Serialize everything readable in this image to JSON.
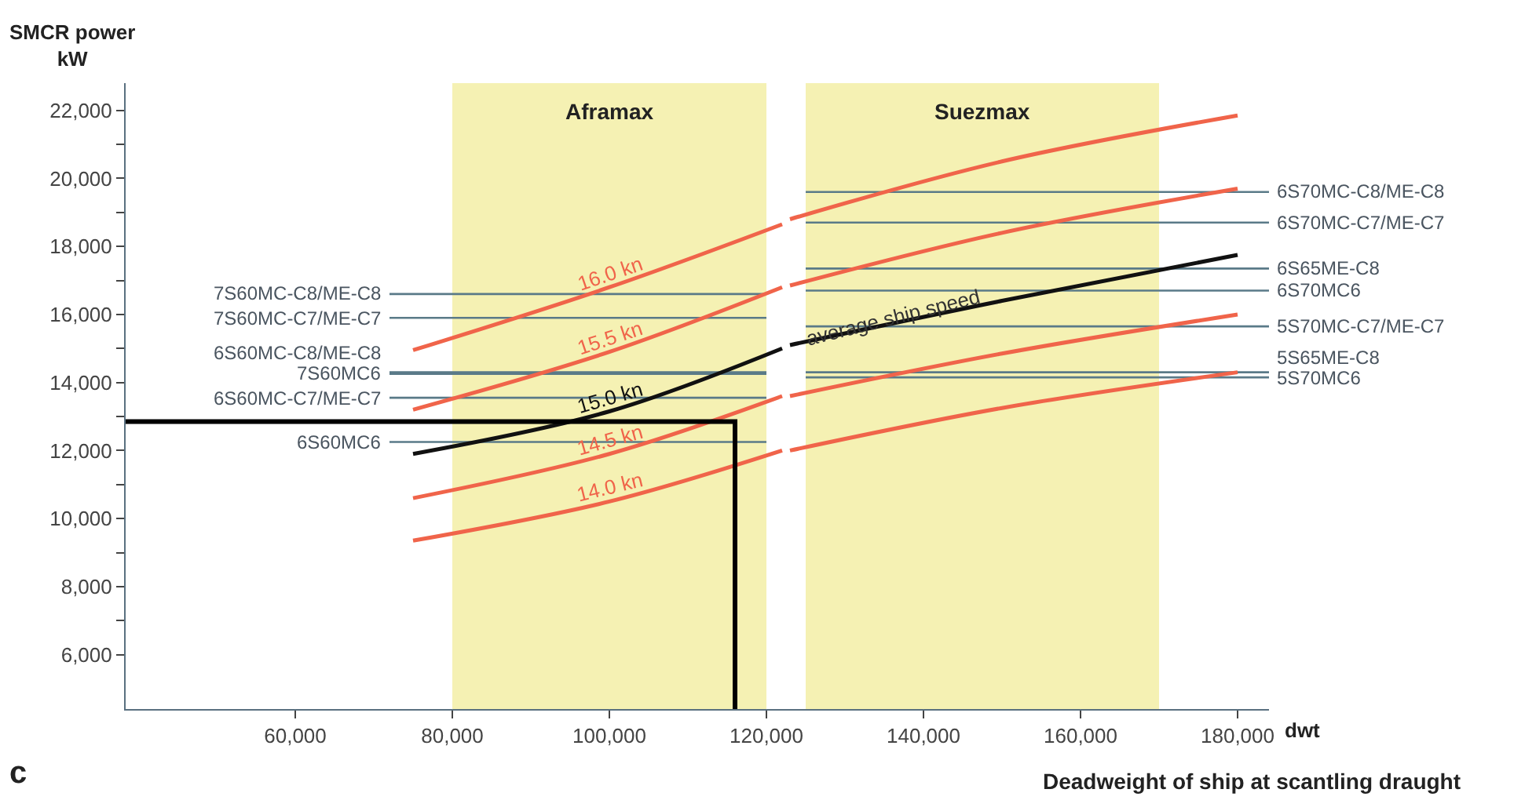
{
  "chart_data": {
    "type": "line",
    "xlabel": "Deadweight of ship at scantling draught",
    "ylabel": "SMCR power\nkW",
    "xlim": [
      38400,
      184000
    ],
    "ylim": [
      4400,
      22800
    ],
    "xticks": [
      {
        "value": 60000,
        "label": "60,000"
      },
      {
        "value": 80000,
        "label": "80,000"
      },
      {
        "value": 100000,
        "label": "100,000"
      },
      {
        "value": 120000,
        "label": "120,000"
      },
      {
        "value": 140000,
        "label": "140,000"
      },
      {
        "value": 160000,
        "label": "160,000"
      },
      {
        "value": 180000,
        "label": "180,000"
      }
    ],
    "yticks": [
      {
        "value": 6000,
        "label": "6,000"
      },
      {
        "value": 7000,
        "label": null
      },
      {
        "value": 8000,
        "label": "8,000"
      },
      {
        "value": 9000,
        "label": null
      },
      {
        "value": 10000,
        "label": "10,000"
      },
      {
        "value": 11000,
        "label": null
      },
      {
        "value": 12000,
        "label": "12,000"
      },
      {
        "value": 13000,
        "label": null
      },
      {
        "value": 14000,
        "label": "14,000"
      },
      {
        "value": 15000,
        "label": null
      },
      {
        "value": 16000,
        "label": "16,000"
      },
      {
        "value": 17000,
        "label": null
      },
      {
        "value": 18000,
        "label": "18,000"
      },
      {
        "value": 19000,
        "label": null
      },
      {
        "value": 20000,
        "label": "20,000"
      },
      {
        "value": 21000,
        "label": null
      },
      {
        "value": 22000,
        "label": "22,000"
      }
    ],
    "grid": false,
    "legend": false,
    "marker": "none",
    "line_style": "solid",
    "bands": [
      {
        "axis": "x",
        "from": 80000,
        "to": 120000,
        "label": "Aframax",
        "color": "#f2eea0"
      },
      {
        "axis": "x",
        "from": 125000,
        "to": 170000,
        "label": "Suezmax",
        "color": "#f2eea0"
      }
    ],
    "series": [
      {
        "name": "7S60MC-C8/ME-C8",
        "color": "#5a7a88",
        "x": [
          72000,
          120000
        ],
        "values": [
          16600,
          16600
        ]
      },
      {
        "name": "7S60MC-C7/ME-C7",
        "color": "#5a7a88",
        "x": [
          72000,
          120000
        ],
        "values": [
          15900,
          15900
        ]
      },
      {
        "name": "6S60MC-C8/ME-C8",
        "color": "#5a7a88",
        "x": [
          72000,
          120000
        ],
        "values": [
          14300,
          14300
        ]
      },
      {
        "name": "7S60MC6",
        "color": "#5a7a88",
        "x": [
          72000,
          120000
        ],
        "values": [
          14250,
          14250
        ]
      },
      {
        "name": "6S60MC-C7/ME-C7",
        "color": "#5a7a88",
        "x": [
          72000,
          120000
        ],
        "values": [
          13550,
          13550
        ]
      },
      {
        "name": "6S60MC6",
        "color": "#5a7a88",
        "x": [
          72000,
          120000
        ],
        "values": [
          12250,
          12250
        ]
      },
      {
        "name": "6S70MC-C8/ME-C8",
        "color": "#5a7a88",
        "x": [
          125000,
          184000
        ],
        "values": [
          19600,
          19600
        ]
      },
      {
        "name": "6S70MC-C7/ME-C7",
        "color": "#5a7a88",
        "x": [
          125000,
          184000
        ],
        "values": [
          18700,
          18700
        ]
      },
      {
        "name": "6S65ME-C8",
        "color": "#5a7a88",
        "x": [
          125000,
          184000
        ],
        "values": [
          17350,
          17350
        ]
      },
      {
        "name": "6S70MC6",
        "color": "#5a7a88",
        "x": [
          125000,
          184000
        ],
        "values": [
          16700,
          16700
        ]
      },
      {
        "name": "5S70MC-C7/ME-C7",
        "color": "#5a7a88",
        "x": [
          125000,
          184000
        ],
        "values": [
          15650,
          15650
        ]
      },
      {
        "name": "5S65ME-C8",
        "color": "#5a7a88",
        "x": [
          125000,
          184000
        ],
        "values": [
          14300,
          14300
        ]
      },
      {
        "name": "5S70MC6",
        "color": "#5a7a88",
        "x": [
          125000,
          184000
        ],
        "values": [
          14150,
          14150
        ]
      },
      {
        "name": "16.0 kn",
        "color": "#f0644a",
        "x": [
          75000,
          100000,
          122000,
          122500,
          123000,
          150000,
          180000
        ],
        "values": [
          14950,
          16800,
          18650,
          null,
          18800,
          20500,
          21850
        ]
      },
      {
        "name": "15.5 kn",
        "color": "#f0644a",
        "x": [
          75000,
          100000,
          122000,
          122500,
          123000,
          150000,
          180000
        ],
        "values": [
          13200,
          14900,
          16800,
          null,
          16850,
          18400,
          19700
        ]
      },
      {
        "name": "15.0 kn",
        "color": "#111111",
        "x": [
          75000,
          100000,
          122000,
          122500,
          123000,
          150000,
          180000
        ],
        "values": [
          11900,
          13150,
          15000,
          null,
          15100,
          16400,
          17750
        ]
      },
      {
        "name": "14.5 kn",
        "color": "#f0644a",
        "x": [
          75000,
          100000,
          122000,
          122500,
          123000,
          150000,
          180000
        ],
        "values": [
          10600,
          11900,
          13600,
          null,
          13600,
          14850,
          16000
        ]
      },
      {
        "name": "14.0 kn",
        "color": "#f0644a",
        "x": [
          75000,
          100000,
          122000,
          122500,
          123000,
          150000,
          180000
        ],
        "values": [
          9350,
          10500,
          12000,
          null,
          12000,
          13250,
          14300
        ]
      },
      {
        "color": "#000000",
        "x": [
          38400,
          116000,
          116000
        ],
        "values": [
          12850,
          12850,
          4400
        ]
      }
    ],
    "annotations": [
      {
        "text": "average ship speed",
        "x": 136000,
        "y": 15900
      },
      "dwt",
      "c"
    ]
  }
}
